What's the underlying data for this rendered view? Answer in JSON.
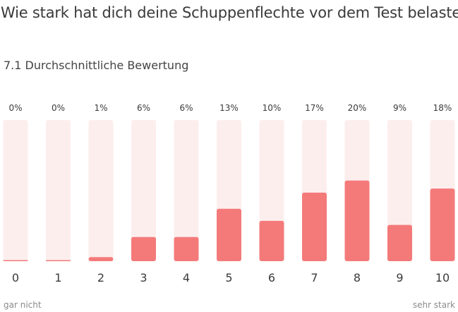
{
  "title": "Wie stark hat dich deine Schuppenflechte vor dem Test belastet?",
  "subtitle": "7.1 Durchschnittliche Bewertung",
  "scale": {
    "low_label": "gar nicht",
    "high_label": "sehr stark"
  },
  "colors": {
    "bar_fill": "#f47a7a",
    "bar_track": "#fdeeee",
    "text": "#3a3a3a",
    "muted_text": "#8a8a8a"
  },
  "chart_data": {
    "type": "bar",
    "categories": [
      "0",
      "1",
      "2",
      "3",
      "4",
      "5",
      "6",
      "7",
      "8",
      "9",
      "10"
    ],
    "values": [
      0,
      0,
      1,
      6,
      6,
      13,
      10,
      17,
      20,
      9,
      18
    ],
    "value_labels": [
      "0%",
      "0%",
      "1%",
      "6%",
      "6%",
      "13%",
      "10%",
      "17%",
      "20%",
      "9%",
      "18%"
    ],
    "ylim": [
      0,
      100
    ],
    "grid": false,
    "legend": "none"
  }
}
